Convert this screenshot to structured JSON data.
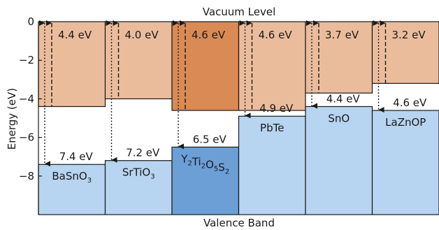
{
  "chart_data": {
    "type": "bar",
    "title_top": "Vacuum Level",
    "title_bottom": "Valence Band",
    "ylabel": "Energy (eV)",
    "ylim": [
      -10,
      0
    ],
    "yticks": [
      0,
      -2,
      -4,
      -6,
      -8
    ],
    "ytick_labels": [
      "0",
      "−2",
      "−4",
      "−6",
      "−8"
    ],
    "categories": [
      "BaSnO3",
      "SrTiO3",
      "Y2Ti2O5S2",
      "PbTe",
      "SnO",
      "LaZnOP"
    ],
    "category_labels": [
      [
        {
          "t": "BaSnO"
        },
        {
          "t": "3",
          "sub": true
        }
      ],
      [
        {
          "t": "SrTiO"
        },
        {
          "t": "3",
          "sub": true
        }
      ],
      [
        {
          "t": "Y"
        },
        {
          "t": "2",
          "sub": true
        },
        {
          "t": "Ti"
        },
        {
          "t": "2",
          "sub": true
        },
        {
          "t": "O"
        },
        {
          "t": "5",
          "sub": true
        },
        {
          "t": "S"
        },
        {
          "t": "2",
          "sub": true
        }
      ],
      [
        {
          "t": "PbTe"
        }
      ],
      [
        {
          "t": "SnO"
        }
      ],
      [
        {
          "t": "LaZnOP"
        }
      ]
    ],
    "series": [
      {
        "name": "conduction_band_min",
        "values": [
          -4.4,
          -4.0,
          -4.6,
          -4.6,
          -3.7,
          -3.2
        ]
      },
      {
        "name": "valence_band_max",
        "values": [
          -7.4,
          -7.2,
          -6.5,
          -4.9,
          -4.4,
          -4.6
        ]
      }
    ],
    "electron_affinity_labels": [
      "4.4 eV",
      "4.0 eV",
      "4.6 eV",
      "4.6 eV",
      "3.7 eV",
      "3.2 eV"
    ],
    "ionization_labels": [
      "7.4 eV",
      "7.2 eV",
      "6.5 eV",
      "4.9 eV",
      "4.4 eV",
      "4.6 eV"
    ],
    "highlight_index": 2,
    "colors": {
      "cb": "#ebbc9c",
      "cb_highlight": "#d98a55",
      "vb": "#b7d4f0",
      "vb_highlight": "#6b9fd6",
      "line": "#1a1a1a"
    },
    "grid": false
  }
}
